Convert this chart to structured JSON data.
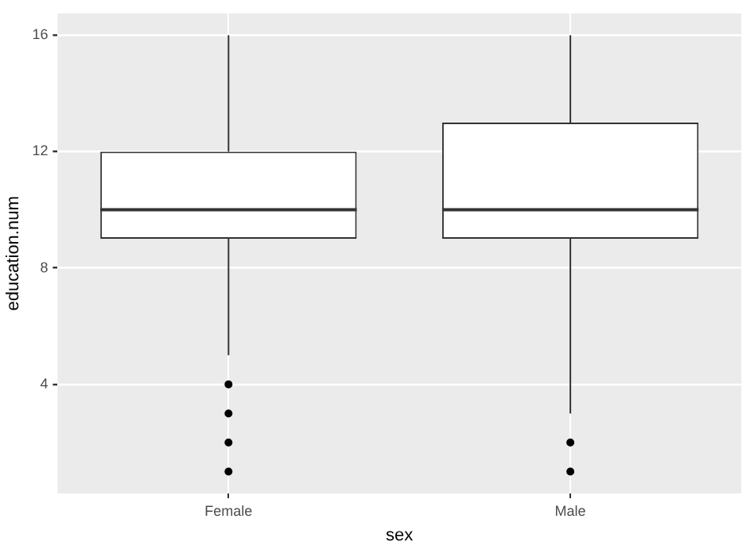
{
  "chart_data": {
    "type": "box",
    "xlabel": "sex",
    "ylabel": "education.num",
    "categories": [
      "Female",
      "Male"
    ],
    "boxes": [
      {
        "low": 5,
        "q1": 9,
        "median": 10,
        "q3": 12,
        "high": 16,
        "outliers": [
          4,
          3,
          2,
          1
        ]
      },
      {
        "low": 3,
        "q1": 9,
        "median": 10,
        "q3": 13,
        "high": 16,
        "outliers": [
          2,
          1
        ]
      }
    ],
    "ylim": [
      0.25,
      16.75
    ],
    "yticks": [
      4,
      8,
      12,
      16
    ],
    "grid": true
  }
}
